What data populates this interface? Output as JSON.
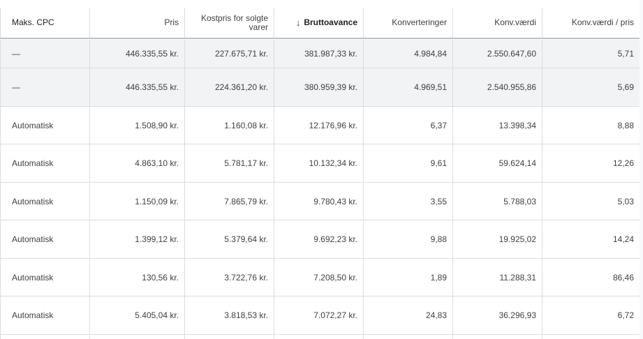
{
  "table": {
    "columns": [
      {
        "label": "Maks. CPC"
      },
      {
        "label": "Pris"
      },
      {
        "label": "Kostpris for solgte varer"
      },
      {
        "label": "Bruttoavance",
        "sorted": "descending"
      },
      {
        "label": "Konverteringer"
      },
      {
        "label": "Konv.værdi"
      },
      {
        "label": "Konv.værdi / pris"
      }
    ],
    "summary_rows": [
      {
        "cells": [
          "—",
          "446.335,55 kr.",
          "227.675,71 kr.",
          "381.987,33 kr.",
          "4.984,84",
          "2.550.647,60",
          "5,71"
        ]
      },
      {
        "cells": [
          "—",
          "446.335,55 kr.",
          "224.361,20 kr.",
          "380.959,39 kr.",
          "4.969,51",
          "2.540.955,86",
          "5,69"
        ]
      }
    ],
    "rows": [
      {
        "cells": [
          "Automatisk",
          "1.508,90 kr.",
          "1.160,08 kr.",
          "12.176,96 kr.",
          "6,37",
          "13.398,34",
          "8,88"
        ]
      },
      {
        "cells": [
          "Automatisk",
          "4.863,10 kr.",
          "5.781,17 kr.",
          "10.132,34 kr.",
          "9,61",
          "59.624,14",
          "12,26"
        ]
      },
      {
        "cells": [
          "Automatisk",
          "1.150,09 kr.",
          "7.865,79 kr.",
          "9.780,43 kr.",
          "3,55",
          "5.788,03",
          "5,03"
        ]
      },
      {
        "cells": [
          "Automatisk",
          "1.399,12 kr.",
          "5.379,64 kr.",
          "9.692,23 kr.",
          "9,88",
          "19.925,02",
          "14,24"
        ]
      },
      {
        "cells": [
          "Automatisk",
          "130,56 kr.",
          "3.722,76 kr.",
          "7.208,50 kr.",
          "1,89",
          "11.288,31",
          "86,46"
        ]
      },
      {
        "cells": [
          "Automatisk",
          "5.405,04 kr.",
          "3.818,53 kr.",
          "7.072,27 kr.",
          "24,83",
          "36.296,93",
          "6,72"
        ]
      }
    ],
    "sort_icon": "arrow-down-icon"
  }
}
